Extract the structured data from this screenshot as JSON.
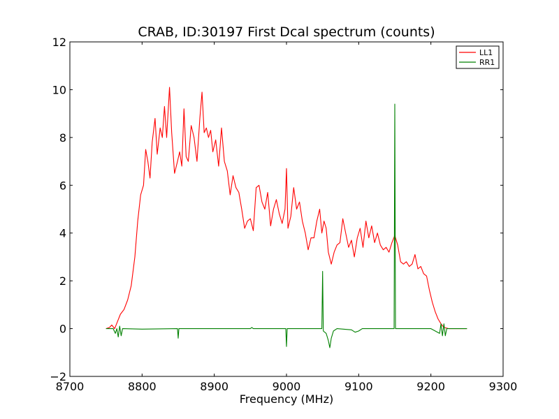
{
  "chart_data": {
    "type": "line",
    "title": "CRAB, ID:30197 First Dcal spectrum (counts)",
    "xlabel": "Frequency (MHz)",
    "ylabel": "",
    "xlim": [
      8700,
      9300
    ],
    "ylim": [
      -2,
      12
    ],
    "x_ticks": [
      8700,
      8800,
      8900,
      9000,
      9100,
      9200,
      9300
    ],
    "y_ticks": [
      -2,
      0,
      2,
      4,
      6,
      8,
      10,
      12
    ],
    "y_tick_labels": [
      "−2",
      "0",
      "2",
      "4",
      "6",
      "8",
      "10",
      "12"
    ],
    "grid": false,
    "legend_position": "top-right",
    "series": [
      {
        "name": "LL1",
        "color": "#ff0000",
        "points": [
          [
            8750,
            0.0
          ],
          [
            8755,
            0.05
          ],
          [
            8758,
            0.15
          ],
          [
            8762,
            0.0
          ],
          [
            8766,
            0.3
          ],
          [
            8770,
            0.6
          ],
          [
            8775,
            0.8
          ],
          [
            8780,
            1.2
          ],
          [
            8785,
            1.8
          ],
          [
            8790,
            3.0
          ],
          [
            8794,
            4.5
          ],
          [
            8798,
            5.6
          ],
          [
            8802,
            6.0
          ],
          [
            8805,
            7.5
          ],
          [
            8808,
            7.0
          ],
          [
            8811,
            6.3
          ],
          [
            8814,
            7.8
          ],
          [
            8818,
            8.8
          ],
          [
            8821,
            7.3
          ],
          [
            8825,
            8.4
          ],
          [
            8828,
            8.0
          ],
          [
            8831,
            9.3
          ],
          [
            8834,
            8.0
          ],
          [
            8838,
            10.1
          ],
          [
            8841,
            8.2
          ],
          [
            8845,
            6.5
          ],
          [
            8849,
            7.0
          ],
          [
            8852,
            7.4
          ],
          [
            8855,
            6.8
          ],
          [
            8858,
            9.2
          ],
          [
            8861,
            7.2
          ],
          [
            8864,
            7.0
          ],
          [
            8868,
            8.5
          ],
          [
            8872,
            8.0
          ],
          [
            8876,
            7.0
          ],
          [
            8880,
            8.8
          ],
          [
            8883,
            9.9
          ],
          [
            8886,
            8.2
          ],
          [
            8889,
            8.4
          ],
          [
            8892,
            8.0
          ],
          [
            8895,
            8.3
          ],
          [
            8898,
            7.4
          ],
          [
            8902,
            7.9
          ],
          [
            8906,
            6.8
          ],
          [
            8910,
            8.4
          ],
          [
            8914,
            7.0
          ],
          [
            8918,
            6.6
          ],
          [
            8922,
            5.6
          ],
          [
            8926,
            6.4
          ],
          [
            8930,
            5.9
          ],
          [
            8934,
            5.7
          ],
          [
            8938,
            5.0
          ],
          [
            8942,
            4.2
          ],
          [
            8946,
            4.5
          ],
          [
            8950,
            4.6
          ],
          [
            8954,
            4.1
          ],
          [
            8958,
            5.9
          ],
          [
            8962,
            6.0
          ],
          [
            8966,
            5.3
          ],
          [
            8970,
            5.0
          ],
          [
            8974,
            5.7
          ],
          [
            8978,
            4.3
          ],
          [
            8982,
            5.0
          ],
          [
            8986,
            5.4
          ],
          [
            8990,
            4.8
          ],
          [
            8994,
            4.4
          ],
          [
            8998,
            5.0
          ],
          [
            9000,
            6.7
          ],
          [
            9002,
            4.2
          ],
          [
            9006,
            4.7
          ],
          [
            9010,
            5.9
          ],
          [
            9014,
            5.0
          ],
          [
            9018,
            5.3
          ],
          [
            9022,
            4.5
          ],
          [
            9026,
            4.0
          ],
          [
            9030,
            3.3
          ],
          [
            9034,
            3.8
          ],
          [
            9038,
            3.8
          ],
          [
            9042,
            4.5
          ],
          [
            9046,
            5.0
          ],
          [
            9049,
            4.0
          ],
          [
            9052,
            4.5
          ],
          [
            9055,
            4.2
          ],
          [
            9058,
            3.2
          ],
          [
            9062,
            2.7
          ],
          [
            9066,
            3.2
          ],
          [
            9070,
            3.5
          ],
          [
            9074,
            3.6
          ],
          [
            9078,
            4.6
          ],
          [
            9082,
            4.0
          ],
          [
            9086,
            3.4
          ],
          [
            9090,
            3.7
          ],
          [
            9094,
            3.0
          ],
          [
            9098,
            3.8
          ],
          [
            9102,
            4.2
          ],
          [
            9106,
            3.4
          ],
          [
            9110,
            4.5
          ],
          [
            9114,
            3.8
          ],
          [
            9118,
            4.3
          ],
          [
            9122,
            3.6
          ],
          [
            9126,
            4.0
          ],
          [
            9130,
            3.5
          ],
          [
            9134,
            3.3
          ],
          [
            9138,
            3.4
          ],
          [
            9142,
            3.2
          ],
          [
            9146,
            3.6
          ],
          [
            9150,
            3.9
          ],
          [
            9154,
            3.5
          ],
          [
            9158,
            2.8
          ],
          [
            9162,
            2.7
          ],
          [
            9166,
            2.8
          ],
          [
            9170,
            2.6
          ],
          [
            9174,
            2.7
          ],
          [
            9178,
            3.1
          ],
          [
            9182,
            2.5
          ],
          [
            9186,
            2.6
          ],
          [
            9190,
            2.3
          ],
          [
            9194,
            2.2
          ],
          [
            9198,
            1.6
          ],
          [
            9202,
            1.1
          ],
          [
            9206,
            0.7
          ],
          [
            9210,
            0.4
          ],
          [
            9214,
            0.2
          ],
          [
            9218,
            0.05
          ],
          [
            9225,
            0.0
          ],
          [
            9235,
            0.0
          ],
          [
            9250,
            0.0
          ]
        ]
      },
      {
        "name": "RR1",
        "color": "#008000",
        "points": [
          [
            8750,
            0.0
          ],
          [
            8760,
            0.0
          ],
          [
            8763,
            -0.2
          ],
          [
            8765,
            0.0
          ],
          [
            8767,
            -0.35
          ],
          [
            8769,
            0.1
          ],
          [
            8771,
            -0.3
          ],
          [
            8773,
            0.0
          ],
          [
            8800,
            -0.02
          ],
          [
            8849,
            0.0
          ],
          [
            8850,
            -0.4
          ],
          [
            8851,
            0.0
          ],
          [
            8950,
            0.0
          ],
          [
            8952,
            0.05
          ],
          [
            8954,
            0.0
          ],
          [
            8999,
            0.0
          ],
          [
            9000,
            -0.75
          ],
          [
            9001,
            0.0
          ],
          [
            9049,
            0.0
          ],
          [
            9050,
            2.4
          ],
          [
            9051,
            -0.1
          ],
          [
            9055,
            -0.2
          ],
          [
            9058,
            -0.5
          ],
          [
            9060,
            -0.8
          ],
          [
            9062,
            -0.4
          ],
          [
            9065,
            -0.1
          ],
          [
            9070,
            0.0
          ],
          [
            9090,
            -0.05
          ],
          [
            9095,
            -0.15
          ],
          [
            9100,
            -0.1
          ],
          [
            9105,
            0.0
          ],
          [
            9149,
            0.0
          ],
          [
            9150,
            9.4
          ],
          [
            9151,
            0.0
          ],
          [
            9200,
            0.0
          ],
          [
            9212,
            -0.2
          ],
          [
            9214,
            0.2
          ],
          [
            9216,
            -0.3
          ],
          [
            9218,
            0.2
          ],
          [
            9220,
            -0.3
          ],
          [
            9222,
            0.0
          ],
          [
            9250,
            0.0
          ]
        ]
      }
    ]
  }
}
